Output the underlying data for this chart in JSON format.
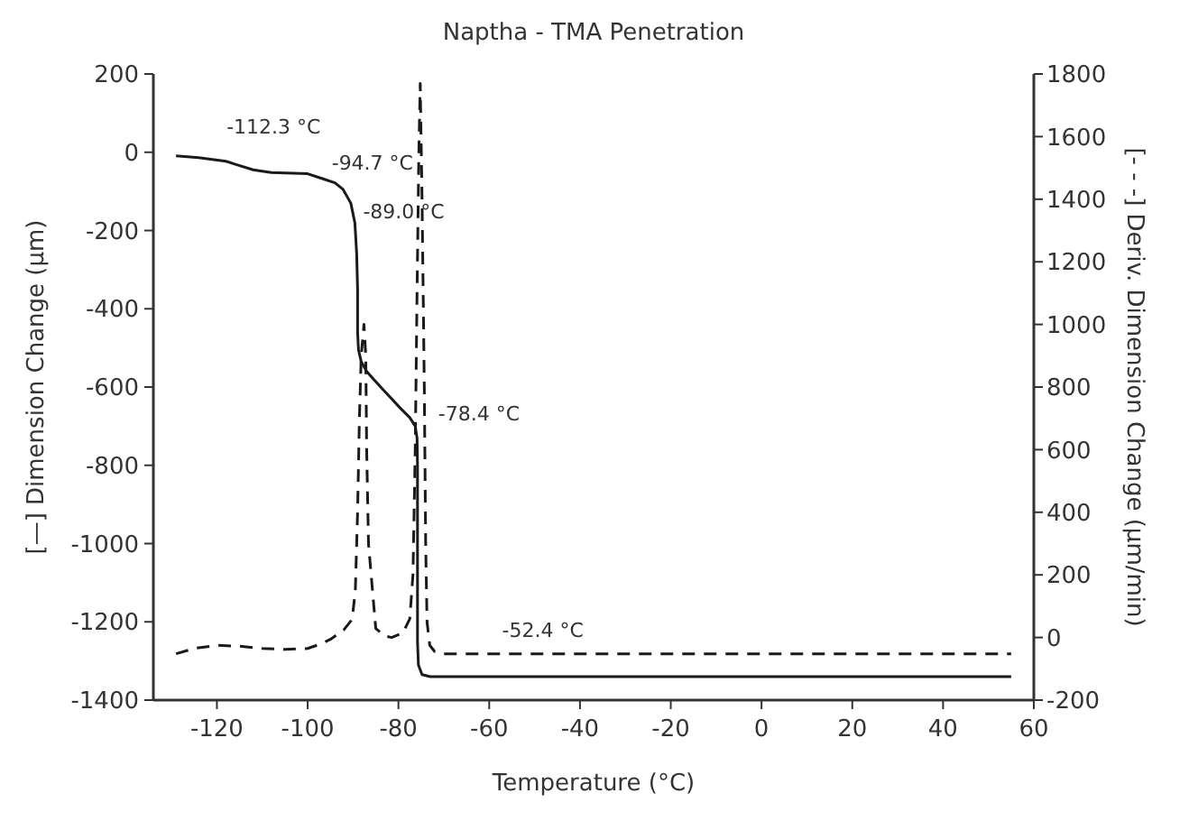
{
  "chart_data": {
    "type": "line",
    "title": "Naptha - TMA Penetration",
    "xlabel": "Temperature (°C)",
    "ylabel": "[—] Dimension Change (µm)",
    "y2label": "[- - -] Deriv. Dimension Change (µm/min)",
    "xlim": [
      -134,
      60
    ],
    "xticks": [
      -120,
      -100,
      -80,
      -60,
      -40,
      -20,
      0,
      20,
      40,
      60
    ],
    "ylim": [
      -1400,
      200
    ],
    "yticks": [
      -1400,
      -1200,
      -1000,
      -800,
      -600,
      -400,
      -200,
      0,
      200
    ],
    "y2lim": [
      -200,
      1800
    ],
    "y2ticks": [
      -200,
      0,
      200,
      400,
      600,
      800,
      1000,
      1200,
      1400,
      1600,
      1800
    ],
    "grid": false,
    "marker": "none",
    "series": [
      {
        "color": "#1a1a1a",
        "line_style": "solid",
        "x": [
          -129,
          -124,
          -118,
          -115.6,
          -112,
          -108,
          -100,
          -96.6,
          -94,
          -92.2,
          -90.5,
          -89.6,
          -89.2,
          -89,
          -89,
          -88.8,
          -88.2,
          -87,
          -85.5,
          -83.5,
          -81.5,
          -79.5,
          -77.5,
          -76.3,
          -75.9,
          -75.8,
          -75.8,
          -75.8,
          -75.6,
          -74.8,
          -73,
          55
        ],
        "values": [
          -9,
          -14,
          -23,
          -32,
          -45,
          -52,
          -55,
          -68,
          -78,
          -95,
          -130,
          -180,
          -260,
          -350,
          -460,
          -505,
          -535,
          -560,
          -580,
          -605,
          -630,
          -655,
          -678,
          -700,
          -730,
          -800,
          -1000,
          -1250,
          -1310,
          -1335,
          -1340,
          -1340
        ]
      },
      {
        "color": "#1a1a1a",
        "line_style": "dashed",
        "axis": "y2",
        "x": [
          -129,
          -125,
          -120,
          -115,
          -110,
          -105,
          -100,
          -97,
          -95,
          -92,
          -90.2,
          -89.5,
          -89,
          -88.6,
          -88.2,
          -87.6,
          -87.2,
          -87,
          -86.6,
          -85,
          -83,
          -81.5,
          -79,
          -77.5,
          -76.8,
          -76.3,
          -75.9,
          -75.5,
          -75.2,
          -74.8,
          -74.3,
          -74,
          -73.7,
          -73.1,
          -72,
          -70,
          55
        ],
        "values": [
          -52,
          -35,
          -25,
          -28,
          -35,
          -38,
          -35,
          -20,
          -6,
          25,
          58,
          150,
          400,
          700,
          900,
          1000,
          900,
          600,
          300,
          29,
          5,
          0,
          15,
          60,
          200,
          600,
          1100,
          1550,
          1770,
          1400,
          800,
          300,
          50,
          -25,
          -45,
          -52,
          -52
        ]
      }
    ],
    "annotations": [
      {
        "text": "-112.3 °C",
        "x": -112.3,
        "y": -45
      },
      {
        "text": "-94.7 °C",
        "x": -94.7,
        "y": -72
      },
      {
        "text": "-89.0 °C",
        "x": -89.0,
        "y": -150
      },
      {
        "text": "-78.4 °C",
        "x": -78.4,
        "y": -668
      },
      {
        "text": "-52.4 °C",
        "x": -52.4,
        "y": -1280
      }
    ]
  }
}
